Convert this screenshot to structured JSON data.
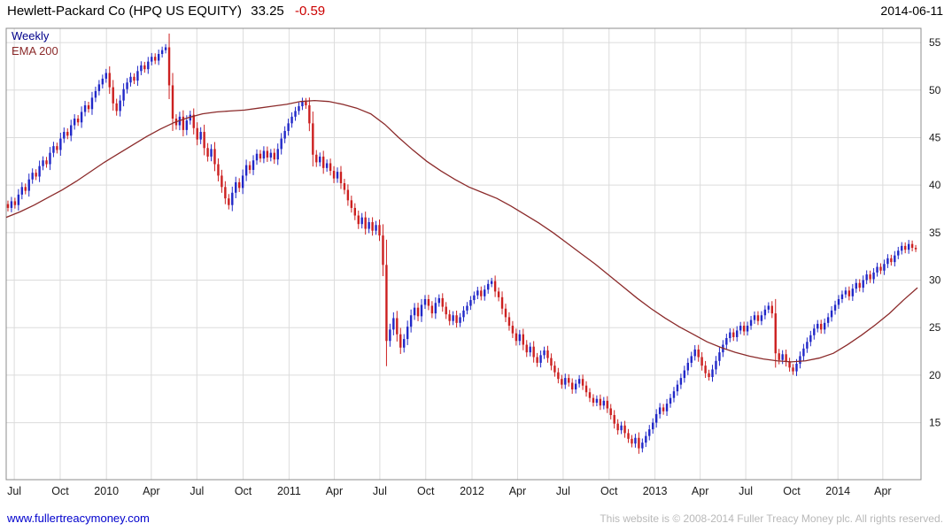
{
  "header": {
    "title": "Hewlett-Packard Co (HPQ US EQUITY)",
    "last_price": "33.25",
    "change": "-0.59",
    "date": "2014-06-11"
  },
  "legend": {
    "series1": "Weekly",
    "series2": "EMA 200"
  },
  "footer": {
    "link": "www.fullertreacymoney.com",
    "copyright": "This website is © 2008-2014 Fuller Treacy Money plc. All rights reserved."
  },
  "colors": {
    "up_candle": "#2128c8",
    "down_candle": "#cc2020",
    "ema_line": "#8b2a2a",
    "change_text": "#cc0000",
    "grid": "#dcdcdc",
    "plot_border": "#8c8c8c",
    "axis_text": "#1a1a1a"
  },
  "chart_data": {
    "type": "candlestick",
    "title": "Hewlett-Packard Co (HPQ US EQUITY)",
    "timeframe": "Weekly",
    "x_unit": "week_index_from_2009-06",
    "x_domain": [
      0,
      261
    ],
    "ylim": [
      9.0,
      56.5
    ],
    "grid": true,
    "y_ticks": [
      15,
      20,
      25,
      30,
      35,
      40,
      45,
      50,
      55
    ],
    "x_ticks": [
      {
        "label": "Jul",
        "week": 2.3
      },
      {
        "label": "Oct",
        "week": 15.4
      },
      {
        "label": "2010",
        "week": 28.6
      },
      {
        "label": "Apr",
        "week": 41.4
      },
      {
        "label": "Jul",
        "week": 54.4
      },
      {
        "label": "Oct",
        "week": 67.6
      },
      {
        "label": "2011",
        "week": 80.7
      },
      {
        "label": "Apr",
        "week": 93.6
      },
      {
        "label": "Jul",
        "week": 106.6
      },
      {
        "label": "Oct",
        "week": 119.7
      },
      {
        "label": "2012",
        "week": 132.9
      },
      {
        "label": "Apr",
        "week": 145.9
      },
      {
        "label": "Jul",
        "week": 158.9
      },
      {
        "label": "Oct",
        "week": 172.0
      },
      {
        "label": "2013",
        "week": 185.1
      },
      {
        "label": "Apr",
        "week": 198.0
      },
      {
        "label": "Jul",
        "week": 211.0
      },
      {
        "label": "Oct",
        "week": 224.1
      },
      {
        "label": "2014",
        "week": 237.3
      },
      {
        "label": "Apr",
        "week": 250.1
      }
    ],
    "series": [
      {
        "name": "HPQ weekly price",
        "style": "candlestick",
        "up_color": "#2128c8",
        "down_color": "#cc2020",
        "closes": [
          37.6,
          38.3,
          37.9,
          39.0,
          39.8,
          39.4,
          40.6,
          41.3,
          40.9,
          42.0,
          42.6,
          42.2,
          43.4,
          44.1,
          43.7,
          44.9,
          45.6,
          45.2,
          46.3,
          47.0,
          46.6,
          47.7,
          48.4,
          48.0,
          49.2,
          49.9,
          50.6,
          51.2,
          51.8,
          50.3,
          48.6,
          47.8,
          48.9,
          50.1,
          50.8,
          51.4,
          51.0,
          52.0,
          52.6,
          52.2,
          53.0,
          53.5,
          53.1,
          53.8,
          54.2,
          54.5,
          50.5,
          47.0,
          46.3,
          47.2,
          45.8,
          46.8,
          47.4,
          46.0,
          44.8,
          45.6,
          43.9,
          43.0,
          43.8,
          42.2,
          41.0,
          39.8,
          38.6,
          37.9,
          39.2,
          40.3,
          39.7,
          41.0,
          42.1,
          41.6,
          42.6,
          43.3,
          42.8,
          43.6,
          42.9,
          43.4,
          42.7,
          43.8,
          44.9,
          45.7,
          46.5,
          47.2,
          47.8,
          48.3,
          48.8,
          48.4,
          46.5,
          43.2,
          42.4,
          43.0,
          41.8,
          42.3,
          41.5,
          40.7,
          41.4,
          40.2,
          39.5,
          38.4,
          37.6,
          36.8,
          35.9,
          36.6,
          35.4,
          36.1,
          35.2,
          35.8,
          34.7,
          31.6,
          23.6,
          24.8,
          26.0,
          24.3,
          22.9,
          23.8,
          25.1,
          26.3,
          27.1,
          26.2,
          27.4,
          28.0,
          27.3,
          26.5,
          27.6,
          28.1,
          27.2,
          26.4,
          25.7,
          26.3,
          25.5,
          26.1,
          26.8,
          27.3,
          27.9,
          28.4,
          28.9,
          28.3,
          29.0,
          29.6,
          29.9,
          28.8,
          28.2,
          27.0,
          26.1,
          25.2,
          24.4,
          23.6,
          24.3,
          23.2,
          22.4,
          23.0,
          21.9,
          21.3,
          22.1,
          22.6,
          21.8,
          21.0,
          20.3,
          19.6,
          19.0,
          19.7,
          19.2,
          18.5,
          19.1,
          19.6,
          18.9,
          18.2,
          17.6,
          17.1,
          17.5,
          16.8,
          17.3,
          16.5,
          15.8,
          14.9,
          14.2,
          14.7,
          13.9,
          13.3,
          12.8,
          13.4,
          12.3,
          12.9,
          13.6,
          14.3,
          15.0,
          15.9,
          16.6,
          16.2,
          17.0,
          17.6,
          18.3,
          19.0,
          19.7,
          20.5,
          21.3,
          22.0,
          22.7,
          21.9,
          21.0,
          20.2,
          19.8,
          20.6,
          21.5,
          22.4,
          23.2,
          23.9,
          24.5,
          24.0,
          24.7,
          25.2,
          24.6,
          25.2,
          25.8,
          26.3,
          25.7,
          26.3,
          26.9,
          27.3,
          26.5,
          22.3,
          21.6,
          22.2,
          21.4,
          20.8,
          20.4,
          21.2,
          22.0,
          22.8,
          23.5,
          24.2,
          24.9,
          25.4,
          24.8,
          25.5,
          26.1,
          26.8,
          27.4,
          28.0,
          28.5,
          28.9,
          28.3,
          29.1,
          29.7,
          29.2,
          30.0,
          30.6,
          30.1,
          30.8,
          31.4,
          31.0,
          31.7,
          32.3,
          31.9,
          32.6,
          33.1,
          33.6,
          33.2,
          33.8,
          33.4,
          33.25
        ]
      },
      {
        "name": "EMA 200",
        "style": "line",
        "color": "#8b2a2a",
        "week_step": 4,
        "values": [
          36.6,
          37.2,
          37.9,
          38.7,
          39.5,
          40.4,
          41.4,
          42.4,
          43.3,
          44.2,
          45.1,
          45.9,
          46.6,
          47.1,
          47.5,
          47.7,
          47.8,
          47.9,
          48.1,
          48.3,
          48.5,
          48.8,
          48.9,
          48.8,
          48.5,
          48.1,
          47.5,
          46.4,
          45.0,
          43.7,
          42.5,
          41.5,
          40.6,
          39.8,
          39.2,
          38.6,
          37.8,
          36.9,
          36.0,
          35.0,
          33.9,
          32.8,
          31.7,
          30.5,
          29.3,
          28.1,
          27.0,
          26.0,
          25.1,
          24.3,
          23.5,
          22.9,
          22.4,
          22.0,
          21.7,
          21.5,
          21.4,
          21.5,
          21.8,
          22.3,
          23.2,
          24.2,
          25.3,
          26.5,
          27.9,
          29.2
        ]
      }
    ]
  }
}
